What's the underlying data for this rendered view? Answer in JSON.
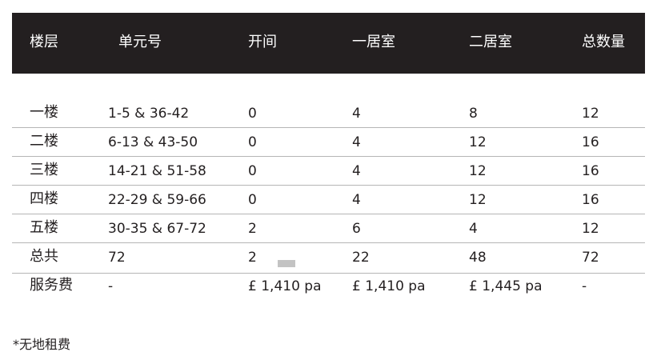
{
  "headers": [
    "楼层",
    "单元号",
    "开间",
    "一居室",
    "二居室",
    "总数量"
  ],
  "rows": [
    [
      "一楼",
      "1-5 & 36-42",
      "0",
      "4",
      "8",
      "12"
    ],
    [
      "二楼",
      "6-13 & 43-50",
      "0",
      "4",
      "12",
      "16"
    ],
    [
      "三楼",
      "14-21 & 51-58",
      "0",
      "4",
      "12",
      "16"
    ],
    [
      "四楼",
      "22-29 & 59-66",
      "0",
      "4",
      "12",
      "16"
    ],
    [
      "五楼",
      "30-35 & 67-72",
      "2",
      "6",
      "4",
      "12"
    ],
    [
      "总共",
      "72",
      "2",
      "22",
      "48",
      "72"
    ],
    [
      "服务费",
      "-",
      "£ 1,410 pa",
      "£ 1,410 pa",
      "£ 1,445 pa",
      "-"
    ]
  ],
  "footnote": "*无地租费"
}
